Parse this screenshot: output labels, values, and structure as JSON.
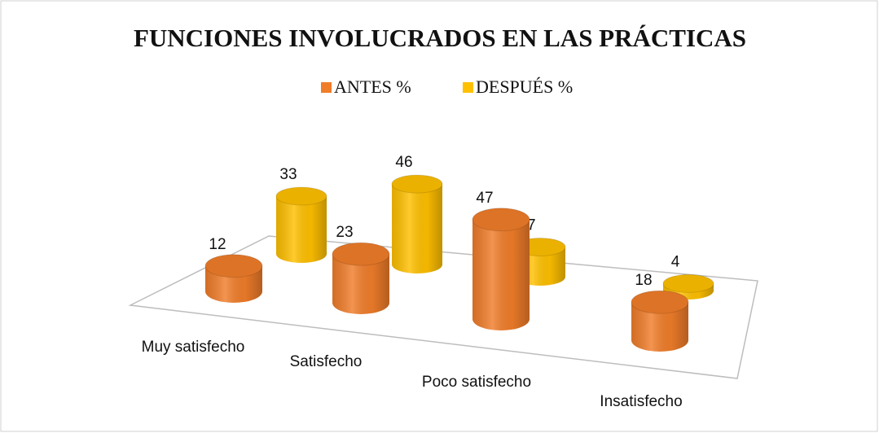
{
  "chart_data": {
    "type": "bar",
    "title": "FUNCIONES INVOLUCRADOS EN LAS PRÁCTICAS",
    "categories": [
      "Muy satisfecho",
      "Satisfecho",
      "Poco satisfecho",
      "Insatisfecho"
    ],
    "series": [
      {
        "name": "ANTES %",
        "color": "#f07d2a",
        "values": [
          12,
          23,
          47,
          18
        ]
      },
      {
        "name": "DESPUÉS %",
        "color": "#ffc000",
        "values": [
          33,
          46,
          17,
          4
        ]
      }
    ]
  }
}
